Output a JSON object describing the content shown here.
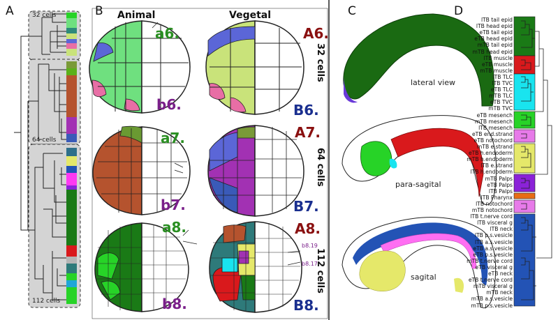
{
  "panels": {
    "a": "A",
    "b": "B",
    "c": "C",
    "d": "D"
  },
  "panel_a": {
    "stage_32": "32 cells",
    "stage_64": "64 cells",
    "stage_112": "112 cells"
  },
  "panel_b": {
    "animal": "Animal",
    "vegetal": "Vegetal",
    "row_32": "32 cells",
    "row_64": "64 cells",
    "row_112": "112 cells",
    "a6": "a6.",
    "b6": "b6.",
    "A6": "A6.",
    "B6": "B6.",
    "a7": "a7.",
    "b7": "b7.",
    "A7": "A7.",
    "B7": "B7.",
    "a8": "a8.",
    "b8": "b8.",
    "A8": "A8.",
    "B8": "B8.",
    "b819": "b8.19",
    "b817": "b8.17"
  },
  "panel_c": {
    "lateral": "lateral view",
    "parasagital": "para-sagital",
    "sagital": "sagital"
  },
  "panel_d": {
    "labels": [
      "lTB tail epid",
      "lTB head epid",
      "eTB tail epid",
      "eTB head epid",
      "mTB tail epid",
      "mTB head epid",
      "lTB muscle",
      "eTB muscle",
      "mTB muscle",
      "lTB TLC",
      "lTB TVC",
      "eTB TLC",
      "mTB TLC",
      "eTB TVC",
      "mTB TVC",
      "eTB mesench",
      "mTB mesench",
      "lTB mesench",
      "eTB end.strand",
      "eTB notochord",
      "mTB e.strand",
      "eTB h.endoderm",
      "mTB h.endoderm",
      "lTB e.strand",
      "lTB h.endoderm",
      "mTB Palps",
      "eTB Palps",
      "lTB Palps",
      "lTB Pharynx",
      "lTB notochord",
      "mTB notochord",
      "lTB t.nerve cord",
      "lTB visceral g",
      "lTB neck",
      "lTB p.s.vesicle",
      "lTB a.s.vesicle",
      "eTB a.s.vesicle",
      "eTB p.s.vesicle",
      "mTB t.nerve cord",
      "eTB visceral g",
      "eTB neck",
      "eTB t.nerve cord",
      "mTB visceral g",
      "mTB neck",
      "mTB a.s.vesicle",
      "mTB p.s.vesicle"
    ]
  },
  "colors": {
    "epidermis": "#1a7a16",
    "muscle": "#d9191c",
    "tlc": "#19e4ef",
    "mesench": "#27d327",
    "notochord": "#e77ae9",
    "endoderm": "#e5e86a",
    "palps": "#8b22d8",
    "pharynx": "#e86d14",
    "nerve": "#2353b5",
    "brown": "#b5532e",
    "purple": "#a231b3",
    "green_light": "#6fe07f",
    "olive": "#c9e37a",
    "blue": "#5b66d7",
    "pink": "#e86ea5"
  }
}
